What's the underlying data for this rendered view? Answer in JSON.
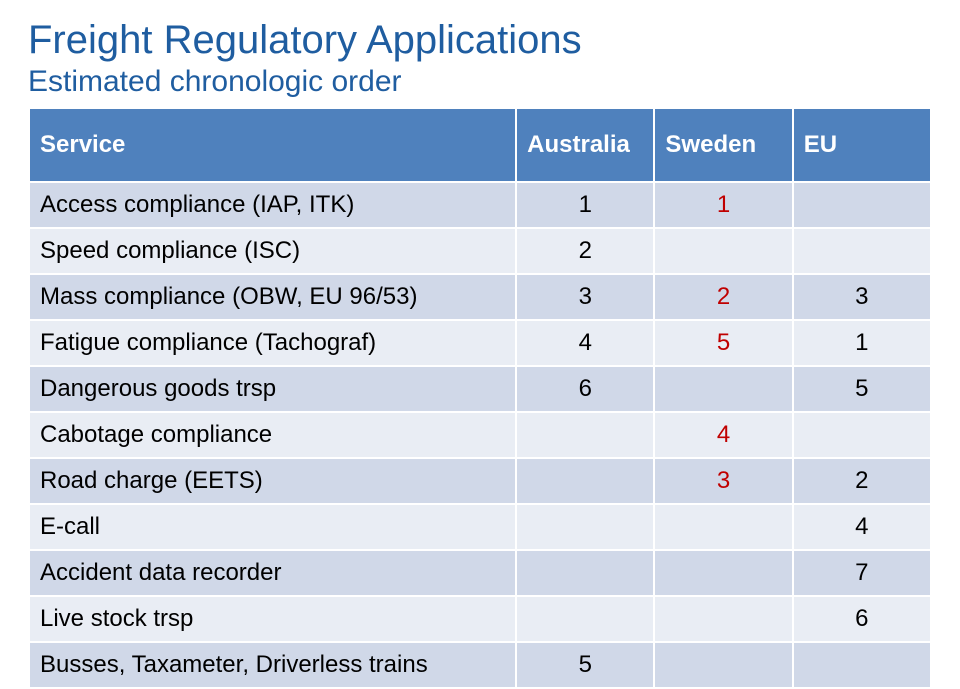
{
  "title": {
    "text": "Freight Regulatory Applications",
    "color": "#1f5da0"
  },
  "subtitle": {
    "text": "Estimated chronologic order",
    "color": "#1f5da0"
  },
  "table": {
    "header_bg": "#4f81bd",
    "header_text_color": "#ffffff",
    "row_bg_odd": "#d0d8e8",
    "row_bg_even": "#e9edf4",
    "cell_text_color": "#000000",
    "highlight_text_color": "#c00000",
    "border_color": "#ffffff",
    "columns": [
      "Service",
      "Australia",
      "Sweden",
      "EU"
    ],
    "rows": [
      {
        "service": "Access compliance (IAP, ITK)",
        "australia": "1",
        "sweden": "1",
        "eu": "",
        "hl": {
          "sweden": true
        }
      },
      {
        "service": "Speed compliance (ISC)",
        "australia": "2",
        "sweden": "",
        "eu": "",
        "hl": {}
      },
      {
        "service": "Mass compliance (OBW, EU 96/53)",
        "australia": "3",
        "sweden": "2",
        "eu": "3",
        "hl": {
          "sweden": true
        }
      },
      {
        "service": "Fatigue compliance (Tachograf)",
        "australia": "4",
        "sweden": "5",
        "eu": "1",
        "hl": {
          "sweden": true
        }
      },
      {
        "service": "Dangerous goods trsp",
        "australia": "6",
        "sweden": "",
        "eu": "5",
        "hl": {}
      },
      {
        "service": "Cabotage compliance",
        "australia": "",
        "sweden": "4",
        "eu": "",
        "hl": {
          "sweden": true
        }
      },
      {
        "service": "Road charge (EETS)",
        "australia": "",
        "sweden": "3",
        "eu": "2",
        "hl": {
          "sweden": true
        }
      },
      {
        "service": "E-call",
        "australia": "",
        "sweden": "",
        "eu": "4",
        "hl": {}
      },
      {
        "service": "Accident data recorder",
        "australia": "",
        "sweden": "",
        "eu": "7",
        "hl": {}
      },
      {
        "service": "Live stock trsp",
        "australia": "",
        "sweden": "",
        "eu": "6",
        "hl": {}
      },
      {
        "service": "Busses, Taxameter, Driverless trains",
        "australia": "5",
        "sweden": "",
        "eu": "",
        "hl": {}
      }
    ]
  }
}
